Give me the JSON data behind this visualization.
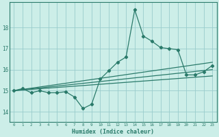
{
  "xlabel": "Humidex (Indice chaleur)",
  "bg_color": "#cceee8",
  "grid_color": "#99cccc",
  "line_color": "#2a7a6a",
  "xlim": [
    -0.5,
    23.5
  ],
  "ylim": [
    13.5,
    19.2
  ],
  "xticks": [
    0,
    1,
    2,
    3,
    4,
    5,
    6,
    7,
    8,
    9,
    10,
    11,
    12,
    13,
    14,
    15,
    16,
    17,
    18,
    19,
    20,
    21,
    22,
    23
  ],
  "yticks": [
    14,
    15,
    16,
    17,
    18
  ],
  "main_x": [
    0,
    1,
    2,
    3,
    4,
    5,
    6,
    7,
    8,
    9,
    10,
    11,
    12,
    13,
    14,
    15,
    16,
    17,
    18,
    19,
    20,
    21,
    22,
    23
  ],
  "main_y": [
    15.0,
    15.1,
    14.9,
    15.0,
    14.9,
    14.9,
    14.95,
    14.7,
    14.15,
    14.35,
    15.55,
    15.95,
    16.35,
    16.6,
    18.85,
    17.6,
    17.35,
    17.05,
    17.0,
    16.95,
    15.75,
    15.75,
    15.9,
    16.2
  ],
  "line1_x": [
    0,
    23
  ],
  "line1_y": [
    15.0,
    15.7
  ],
  "line2_x": [
    0,
    23
  ],
  "line2_y": [
    15.0,
    16.0
  ],
  "line3_x": [
    0,
    23
  ],
  "line3_y": [
    15.0,
    16.35
  ]
}
